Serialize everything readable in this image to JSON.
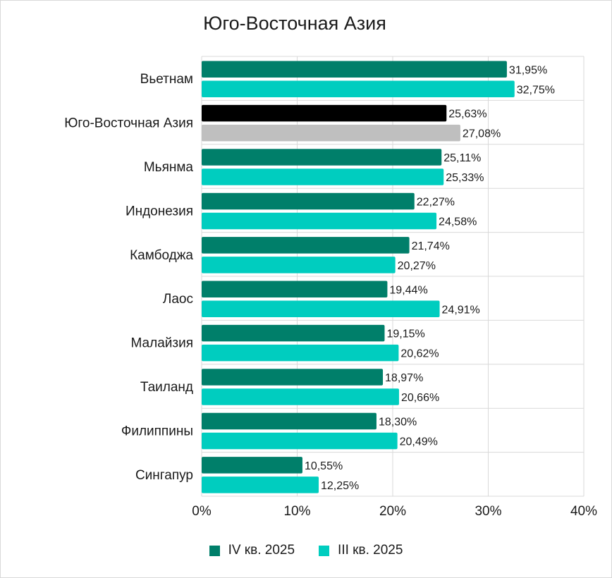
{
  "chart_data": {
    "type": "bar",
    "orientation": "horizontal",
    "title": "Юго-Восточная Азия",
    "categories": [
      "Вьетнам",
      "Юго-Восточная Азия",
      "Мьянма",
      "Индонезия",
      "Камбоджа",
      "Лаос",
      "Малайзия",
      "Таиланд",
      "Филиппины",
      "Сингапур"
    ],
    "series": [
      {
        "name": "IV кв. 2025",
        "color": "#007f6a",
        "values": [
          31.95,
          25.63,
          25.11,
          22.27,
          21.74,
          19.44,
          19.15,
          18.97,
          18.3,
          10.55
        ],
        "labels": [
          "31,95%",
          "25,63%",
          "25,11%",
          "22,27%",
          "21,74%",
          "19,44%",
          "19,15%",
          "18,97%",
          "18,30%",
          "10,55%"
        ]
      },
      {
        "name": "III кв. 2025",
        "color": "#00cdbf",
        "values": [
          32.75,
          27.08,
          25.33,
          24.58,
          20.27,
          24.91,
          20.62,
          20.66,
          20.49,
          12.25
        ],
        "labels": [
          "32,75%",
          "27,08%",
          "25,33%",
          "24,58%",
          "20,27%",
          "24,91%",
          "20,62%",
          "20,66%",
          "20,49%",
          "12,25%"
        ]
      }
    ],
    "highlight": {
      "category": "Юго-Восточная Азия",
      "colors": [
        "#000000",
        "#bfbfbf"
      ]
    },
    "xlim": [
      0,
      40
    ],
    "xticks": [
      0,
      10,
      20,
      30,
      40
    ],
    "xtick_labels": [
      "0%",
      "10%",
      "20%",
      "30%",
      "40%"
    ],
    "grid": true,
    "legend_position": "bottom"
  }
}
